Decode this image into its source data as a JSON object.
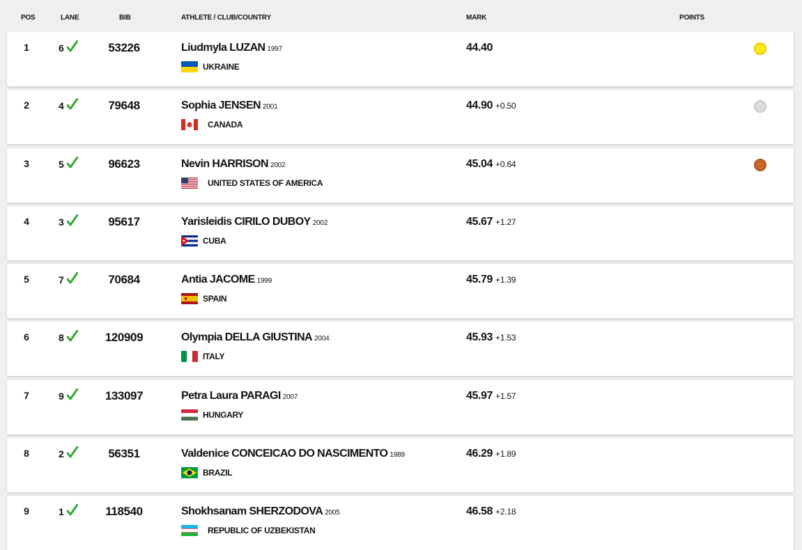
{
  "header": {
    "pos": "POS",
    "lane": "LANE",
    "bib": "BIB",
    "athlete": "ATHLETE / CLUB/COUNTRY",
    "mark": "MARK",
    "points": "POINTS"
  },
  "rows": [
    {
      "pos": 1,
      "lane": 6,
      "bib": 53226,
      "name": "Liudmyla LUZAN",
      "year": 1997,
      "country": "UKRAINE",
      "mark": "44.40"
    },
    {
      "pos": 2,
      "lane": 4,
      "bib": 79648,
      "name": "Sophia JENSEN",
      "year": 2001,
      "country": "CANADA",
      "mark": "44.90",
      "diff": "+0.50"
    },
    {
      "pos": 3,
      "lane": 5,
      "bib": 96623,
      "name": "Nevin HARRISON",
      "year": 2002,
      "country": "UNITED STATES OF AMERICA",
      "mark": "45.04",
      "diff": "+0.64"
    },
    {
      "pos": 4,
      "lane": 3,
      "bib": 95617,
      "name": "Yarisleidis CIRILO DUBOY",
      "year": 2002,
      "country": "CUBA",
      "mark": "45.67",
      "diff": "+1.27"
    },
    {
      "pos": 5,
      "lane": 7,
      "bib": 70684,
      "name": "Antia JACOME",
      "year": 1999,
      "country": "SPAIN",
      "mark": "45.79",
      "diff": "+1.39"
    },
    {
      "pos": 6,
      "lane": 8,
      "bib": 120909,
      "name": "Olympia DELLA GIUSTINA",
      "year": 2004,
      "country": "ITALY",
      "mark": "45.93",
      "diff": "+1.53"
    },
    {
      "pos": 7,
      "lane": 9,
      "bib": 133097,
      "name": "Petra Laura PARAGI",
      "year": 2007,
      "country": "HUNGARY",
      "mark": "45.97",
      "diff": "+1.57"
    },
    {
      "pos": 8,
      "lane": 2,
      "bib": 56351,
      "name": "Valdenice CONCEICAO DO NASCIMENTO",
      "year": 1989,
      "country": "BRAZIL",
      "mark": "46.29",
      "diff": "+1.89"
    },
    {
      "pos": 9,
      "lane": 1,
      "bib": 118540,
      "name": "Shokhsanam SHERZODOVA",
      "year": 2005,
      "country": "REPUBLIC OF UZBEKISTAN",
      "mark": "46.58",
      "diff": "+2.18"
    }
  ]
}
